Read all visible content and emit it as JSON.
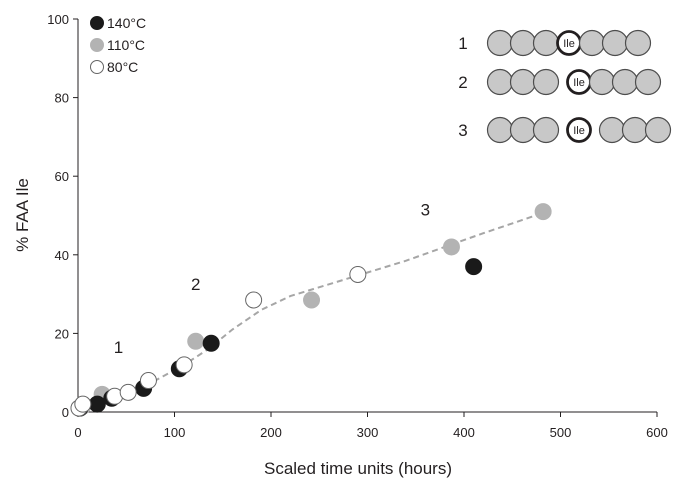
{
  "chart_data": {
    "type": "scatter",
    "xlabel": "Scaled time units (hours)",
    "ylabel": "% FAA Ile",
    "xlim": [
      0,
      600
    ],
    "ylim": [
      0,
      100
    ],
    "xticks": [
      "0",
      "100",
      "200",
      "300",
      "400",
      "500",
      "600"
    ],
    "yticks": [
      "0",
      "20",
      "40",
      "60",
      "80",
      "100"
    ],
    "grid": false,
    "legend_position": "top-left",
    "series": [
      {
        "name": "140°C",
        "color": "#1a1a1a",
        "stroke": "#1a1a1a",
        "points": [
          {
            "x": 2,
            "y": 1
          },
          {
            "x": 20,
            "y": 2
          },
          {
            "x": 35,
            "y": 3.5
          },
          {
            "x": 68,
            "y": 6
          },
          {
            "x": 105,
            "y": 11
          },
          {
            "x": 138,
            "y": 17.5
          },
          {
            "x": 410,
            "y": 37
          }
        ]
      },
      {
        "name": "110°C",
        "color": "#b3b3b3",
        "stroke": "#b3b3b3",
        "points": [
          {
            "x": 5,
            "y": 1.5
          },
          {
            "x": 25,
            "y": 4.5
          },
          {
            "x": 122,
            "y": 18
          },
          {
            "x": 242,
            "y": 28.5
          },
          {
            "x": 387,
            "y": 42
          },
          {
            "x": 482,
            "y": 51
          }
        ]
      },
      {
        "name": "80°C",
        "color": "#ffffff",
        "stroke": "#666666",
        "points": [
          {
            "x": 1,
            "y": 1
          },
          {
            "x": 5,
            "y": 2
          },
          {
            "x": 38,
            "y": 4
          },
          {
            "x": 52,
            "y": 5
          },
          {
            "x": 73,
            "y": 8
          },
          {
            "x": 110,
            "y": 12
          },
          {
            "x": 182,
            "y": 28.5
          },
          {
            "x": 290,
            "y": 35
          }
        ]
      }
    ],
    "trend_line": {
      "color": "#a6a6a6",
      "style": "dashed",
      "points": [
        {
          "x": 0,
          "y": 1.5
        },
        {
          "x": 20,
          "y": 3
        },
        {
          "x": 50,
          "y": 5
        },
        {
          "x": 80,
          "y": 8
        },
        {
          "x": 110,
          "y": 12
        },
        {
          "x": 135,
          "y": 16
        },
        {
          "x": 160,
          "y": 21
        },
        {
          "x": 190,
          "y": 26
        },
        {
          "x": 220,
          "y": 29.5
        },
        {
          "x": 260,
          "y": 32.5
        },
        {
          "x": 300,
          "y": 35.5
        },
        {
          "x": 340,
          "y": 38.5
        },
        {
          "x": 380,
          "y": 42
        },
        {
          "x": 420,
          "y": 45.5
        },
        {
          "x": 450,
          "y": 48
        },
        {
          "x": 480,
          "y": 50.5
        }
      ]
    },
    "annotations": [
      {
        "text": "1",
        "x": 42,
        "y": 15
      },
      {
        "text": "2",
        "x": 122,
        "y": 31
      },
      {
        "text": "3",
        "x": 360,
        "y": 50
      }
    ],
    "inset": {
      "rows": [
        {
          "label": "1",
          "left_beads": 3,
          "right_beads": 3,
          "gap_before": false,
          "gap_after": false
        },
        {
          "label": "2",
          "left_beads": 3,
          "right_beads": 3,
          "gap_before": true,
          "gap_after": false
        },
        {
          "label": "3",
          "left_beads": 3,
          "right_beads": 3,
          "gap_before": true,
          "gap_after": true
        }
      ],
      "center_label": "Ile",
      "bead_fill": "#c8c8c8",
      "bead_stroke": "#4d4d4d",
      "center_stroke": "#231f20"
    }
  }
}
